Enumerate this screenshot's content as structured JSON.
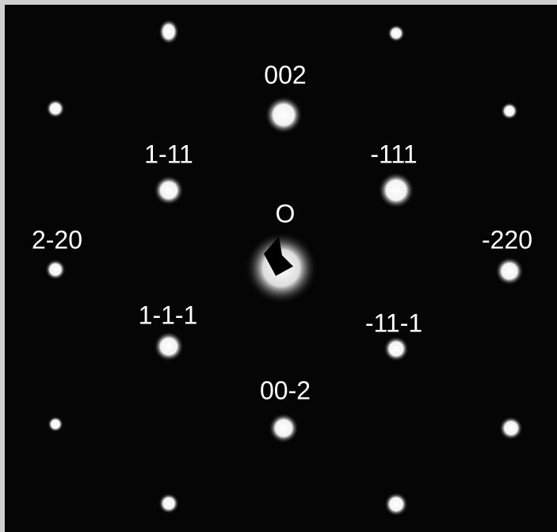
{
  "labels": [
    "002",
    "1-11",
    "-111",
    "O",
    "2-20",
    "-220",
    "1-1-1",
    "-11-1",
    "00-2"
  ]
}
